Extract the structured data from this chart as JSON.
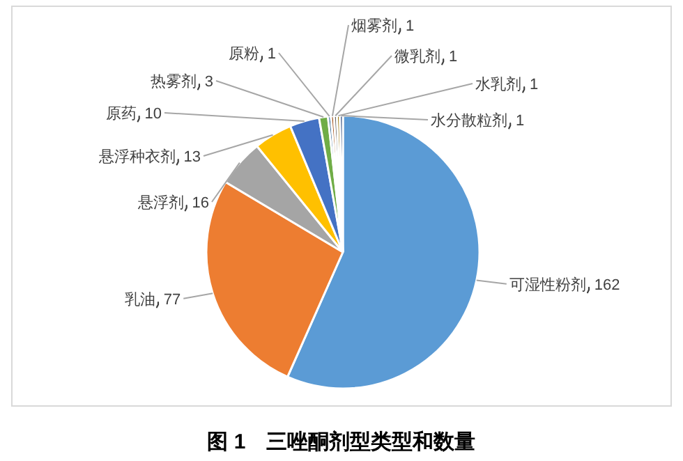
{
  "chart_data": {
    "type": "pie",
    "title": "图 1　三唑酮剂型类型和数量",
    "categories": [
      "可湿性粉剂",
      "乳油",
      "悬浮剂",
      "悬浮种衣剂",
      "原药",
      "热雾剂",
      "原粉",
      "烟雾剂",
      "微乳剂",
      "水乳剂",
      "水分散粒剂"
    ],
    "values": [
      162,
      77,
      16,
      13,
      10,
      3,
      1,
      1,
      1,
      1,
      1
    ],
    "colors": [
      "#5b9bd5",
      "#ed7d31",
      "#a5a5a5",
      "#ffc000",
      "#4472c4",
      "#70ad47",
      "#255e91",
      "#9e480e",
      "#636363",
      "#997300",
      "#264478"
    ],
    "data_labels": true
  }
}
